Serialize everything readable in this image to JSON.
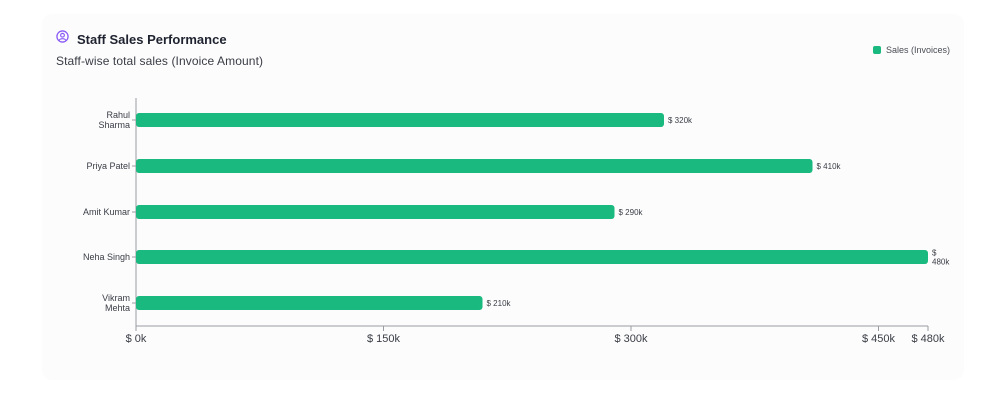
{
  "card": {
    "title": "Staff Sales Performance",
    "subtitle": "Staff-wise total sales (Invoice Amount)",
    "icon": "user-circle-icon"
  },
  "colors": {
    "accent_icon": "#8b5cf6",
    "bar": "#19b97f",
    "axis": "#9a9ca3",
    "text": "#3a3d46"
  },
  "chart_data": {
    "type": "bar",
    "orientation": "horizontal",
    "title": "Staff Sales Performance",
    "subtitle": "Staff-wise total sales (Invoice Amount)",
    "categories": [
      [
        "Rahul",
        "Sharma"
      ],
      [
        "Priya Patel"
      ],
      [
        "Amit Kumar"
      ],
      [
        "Neha Singh"
      ],
      [
        "Vikram",
        "Mehta"
      ]
    ],
    "series": [
      {
        "name": "Sales (Invoices)",
        "values": [
          320000,
          410000,
          290000,
          480000,
          210000
        ],
        "labels": [
          [
            "$ 320k"
          ],
          [
            "$ 410k"
          ],
          [
            "$ 290k"
          ],
          [
            "$",
            "480k"
          ],
          [
            "$ 210k"
          ]
        ]
      }
    ],
    "xlim": [
      0,
      480000
    ],
    "x_ticks": [
      {
        "value": 0,
        "label": "$ 0k"
      },
      {
        "value": 150000,
        "label": "$ 150k"
      },
      {
        "value": 300000,
        "label": "$ 300k"
      },
      {
        "value": 450000,
        "label": "$ 450k"
      },
      {
        "value": 480000,
        "label": "$ 480k"
      }
    ],
    "grid": false,
    "legend_position": "top-right"
  }
}
